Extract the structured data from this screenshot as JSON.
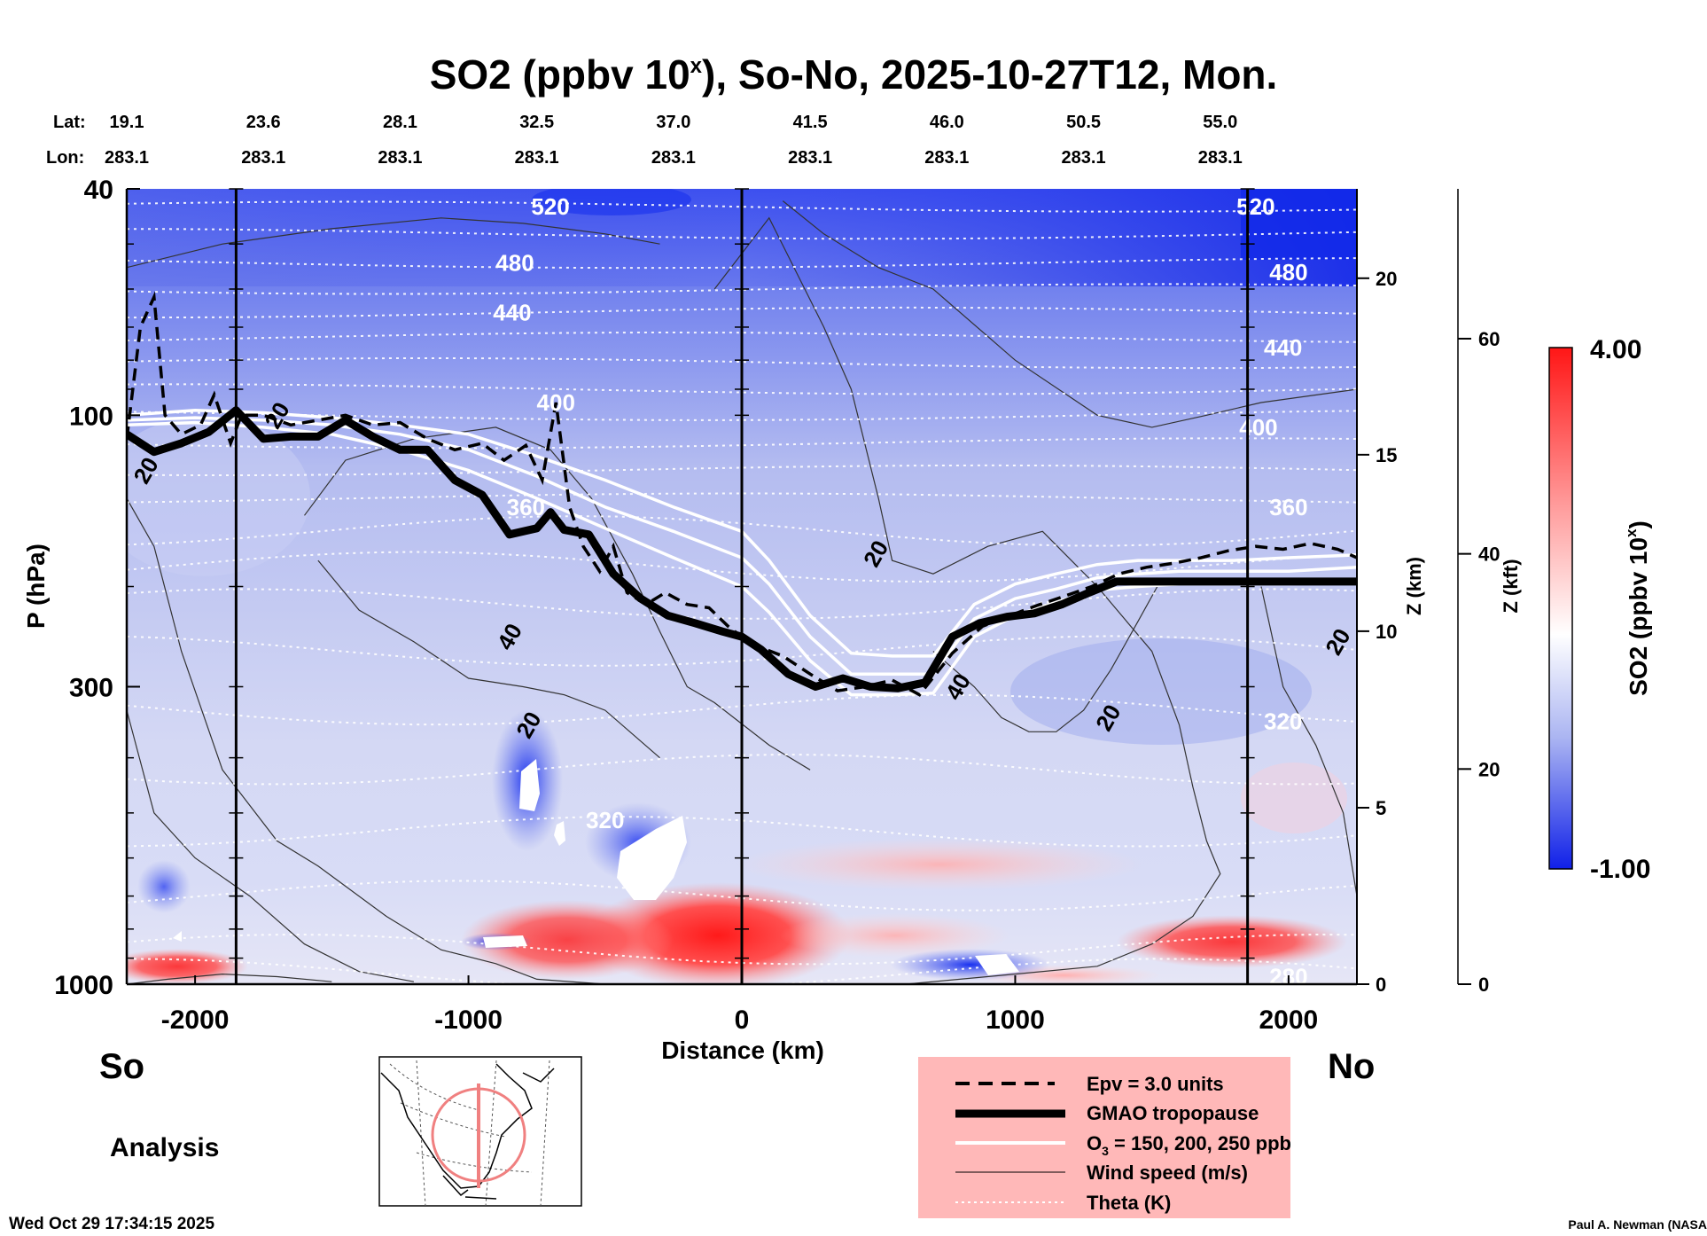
{
  "chart_data": {
    "type": "heatmap",
    "title": "SO2 (ppbv 10",
    "title_exp": "x",
    "title_rest": "), So-No, 2025-10-27T12, Mon.",
    "xlabel": "Distance (km)",
    "ylabel": "P (hPa)",
    "y2label": "Z (km)",
    "y3label": "Z (kft)",
    "xlim": [
      -2250,
      2250
    ],
    "ylim_hPa": [
      1000,
      40
    ],
    "y_log_scale": true,
    "x_ticks": [
      -2000,
      -1000,
      0,
      1000,
      2000
    ],
    "y_ticks": [
      40,
      100,
      300,
      1000
    ],
    "z_km_ticks": [
      0,
      5,
      10,
      15,
      20
    ],
    "z_kft_ticks": [
      0,
      20,
      40,
      60
    ],
    "lat_label": "Lat:",
    "lon_label": "Lon:",
    "lat_ticks": [
      {
        "distance": -2250,
        "value": "19.1"
      },
      {
        "distance": -1750,
        "value": "23.6"
      },
      {
        "distance": -1250,
        "value": "28.1"
      },
      {
        "distance": -750,
        "value": "32.5"
      },
      {
        "distance": -250,
        "value": "37.0"
      },
      {
        "distance": 250,
        "value": "41.5"
      },
      {
        "distance": 750,
        "value": "46.0"
      },
      {
        "distance": 1250,
        "value": "50.5"
      },
      {
        "distance": 1750,
        "value": "55.0"
      }
    ],
    "lon_value": "283.1",
    "vertical_lines_km": [
      -1850,
      0,
      1850
    ],
    "colorbar": {
      "label": "SO2 (ppbv 10",
      "label_exp": "x",
      "label_rest": ")",
      "max_label": "4.00",
      "min_label": "-1.00",
      "range": [
        -1,
        4
      ]
    },
    "theta_labels": [
      {
        "text": "520",
        "x": -700,
        "p": 43
      },
      {
        "text": "520",
        "x": 1880,
        "p": 43
      },
      {
        "text": "480",
        "x": -830,
        "p": 54
      },
      {
        "text": "480",
        "x": 2000,
        "p": 56
      },
      {
        "text": "440",
        "x": -840,
        "p": 66
      },
      {
        "text": "440",
        "x": 1980,
        "p": 76
      },
      {
        "text": "400",
        "x": -680,
        "p": 95
      },
      {
        "text": "400",
        "x": 1890,
        "p": 105
      },
      {
        "text": "360",
        "x": -790,
        "p": 145
      },
      {
        "text": "360",
        "x": 2000,
        "p": 145
      },
      {
        "text": "320",
        "x": -500,
        "p": 515
      },
      {
        "text": "320",
        "x": 1980,
        "p": 345
      },
      {
        "text": "280",
        "x": 2000,
        "p": 970
      }
    ],
    "wind_labels": [
      {
        "text": "20",
        "x": -2180,
        "p": 125
      },
      {
        "text": "20",
        "x": -1700,
        "p": 100
      },
      {
        "text": "20",
        "x": 490,
        "p": 175
      },
      {
        "text": "20",
        "x": 1340,
        "p": 340
      },
      {
        "text": "20",
        "x": 2180,
        "p": 250
      },
      {
        "text": "40",
        "x": -850,
        "p": 245
      },
      {
        "text": "40",
        "x": 790,
        "p": 300
      },
      {
        "text": "20",
        "x": -780,
        "p": 350
      }
    ],
    "series": [
      {
        "name": "GMAO tropopause",
        "x": [
          -2250,
          -2150,
          -2050,
          -1950,
          -1850,
          -1750,
          -1650,
          -1550,
          -1450,
          -1350,
          -1250,
          -1150,
          -1050,
          -950,
          -850,
          -750,
          -700,
          -650,
          -560,
          -470,
          -370,
          -270,
          -170,
          -70,
          0,
          70,
          170,
          270,
          370,
          470,
          570,
          670,
          770,
          870,
          970,
          1070,
          1170,
          1270,
          1370,
          1470,
          1570,
          1670,
          1770,
          1870,
          1970,
          2070,
          2170,
          2250
        ],
        "p": [
          108,
          116,
          112,
          107,
          98,
          110,
          109,
          109,
          102,
          109,
          115,
          115,
          130,
          138,
          162,
          158,
          148,
          159,
          162,
          190,
          210,
          225,
          232,
          240,
          245,
          258,
          285,
          300,
          290,
          300,
          302,
          295,
          245,
          232,
          226,
          223,
          215,
          205,
          196,
          196,
          196,
          196,
          196,
          196,
          196,
          196,
          196,
          196
        ]
      },
      {
        "name": "Epv = 3.0 units",
        "x": [
          -2250,
          -2200,
          -2150,
          -2110,
          -2050,
          -1980,
          -1930,
          -1870,
          -1830,
          -1750,
          -1650,
          -1550,
          -1450,
          -1350,
          -1250,
          -1150,
          -1050,
          -950,
          -870,
          -790,
          -730,
          -680,
          -630,
          -580,
          -520,
          -470,
          -420,
          -350,
          -280,
          -200,
          -120,
          -50,
          0,
          60,
          150,
          250,
          350,
          450,
          550,
          650,
          770,
          880,
          980,
          1080,
          1180,
          1280,
          1380,
          1480,
          1580,
          1680,
          1780,
          1880,
          1980,
          2080,
          2180,
          2250
        ],
        "p": [
          110,
          70,
          62,
          100,
          108,
          104,
          92,
          112,
          100,
          100,
          104,
          102,
          100,
          104,
          103,
          110,
          115,
          112,
          120,
          113,
          130,
          95,
          145,
          170,
          188,
          170,
          205,
          215,
          205,
          215,
          218,
          235,
          245,
          255,
          265,
          285,
          305,
          300,
          292,
          310,
          262,
          235,
          225,
          216,
          208,
          200,
          190,
          185,
          182,
          178,
          173,
          170,
          172,
          168,
          172,
          178
        ]
      },
      {
        "name": "O3 = 150 ppb",
        "x": [
          -2250,
          -2000,
          -1750,
          -1500,
          -1250,
          -1000,
          -750,
          -500,
          -250,
          0,
          100,
          250,
          400,
          550,
          700,
          850,
          1000,
          1150,
          1300,
          1450,
          1600,
          1800,
          2000,
          2250
        ],
        "p": [
          100,
          98,
          99,
          101,
          104,
          108,
          118,
          130,
          145,
          160,
          180,
          225,
          262,
          265,
          265,
          215,
          198,
          190,
          183,
          180,
          180,
          180,
          178,
          176
        ]
      },
      {
        "name": "O3 = 200 ppb",
        "x": [
          -2250,
          -2000,
          -1750,
          -1500,
          -1250,
          -1000,
          -750,
          -500,
          -250,
          0,
          100,
          250,
          400,
          550,
          700,
          850,
          1000,
          1150,
          1300,
          1450,
          1600,
          1800,
          2000,
          2250
        ],
        "p": [
          102,
          101,
          102,
          104,
          108,
          115,
          128,
          145,
          160,
          178,
          198,
          245,
          285,
          285,
          285,
          228,
          210,
          202,
          193,
          190,
          188,
          188,
          188,
          185
        ]
      },
      {
        "name": "O3 = 250 ppb",
        "x": [
          -2250,
          -2000,
          -1750,
          -1500,
          -1250,
          -1000,
          -750,
          -500,
          -250,
          0,
          100,
          250,
          400,
          550,
          700,
          850,
          1000,
          1150,
          1300,
          1450,
          1600,
          1800,
          2000,
          2250
        ],
        "p": [
          104,
          103,
          105,
          108,
          115,
          125,
          140,
          158,
          178,
          200,
          222,
          270,
          310,
          310,
          308,
          245,
          225,
          213,
          203,
          200,
          198,
          198,
          198,
          195
        ]
      }
    ]
  },
  "legend": {
    "items": [
      {
        "label": "Epv = 3.0 units"
      },
      {
        "label": "GMAO tropopause"
      },
      {
        "label": "O",
        "sub": "3",
        "rest": " = 150, 200, 250 ppb"
      },
      {
        "label": "Wind speed (m/s)"
      },
      {
        "label": "Theta (K)"
      }
    ]
  },
  "labels": {
    "south": "So",
    "north": "No",
    "analysis": "Analysis",
    "timestamp": "Wed Oct 29 17:34:15 2025",
    "credit": "Paul A. Newman (NASA"
  },
  "colors": {
    "blue": "#2a3cf0",
    "red": "#ff1010",
    "legend_bg": "#ffb8b8"
  }
}
